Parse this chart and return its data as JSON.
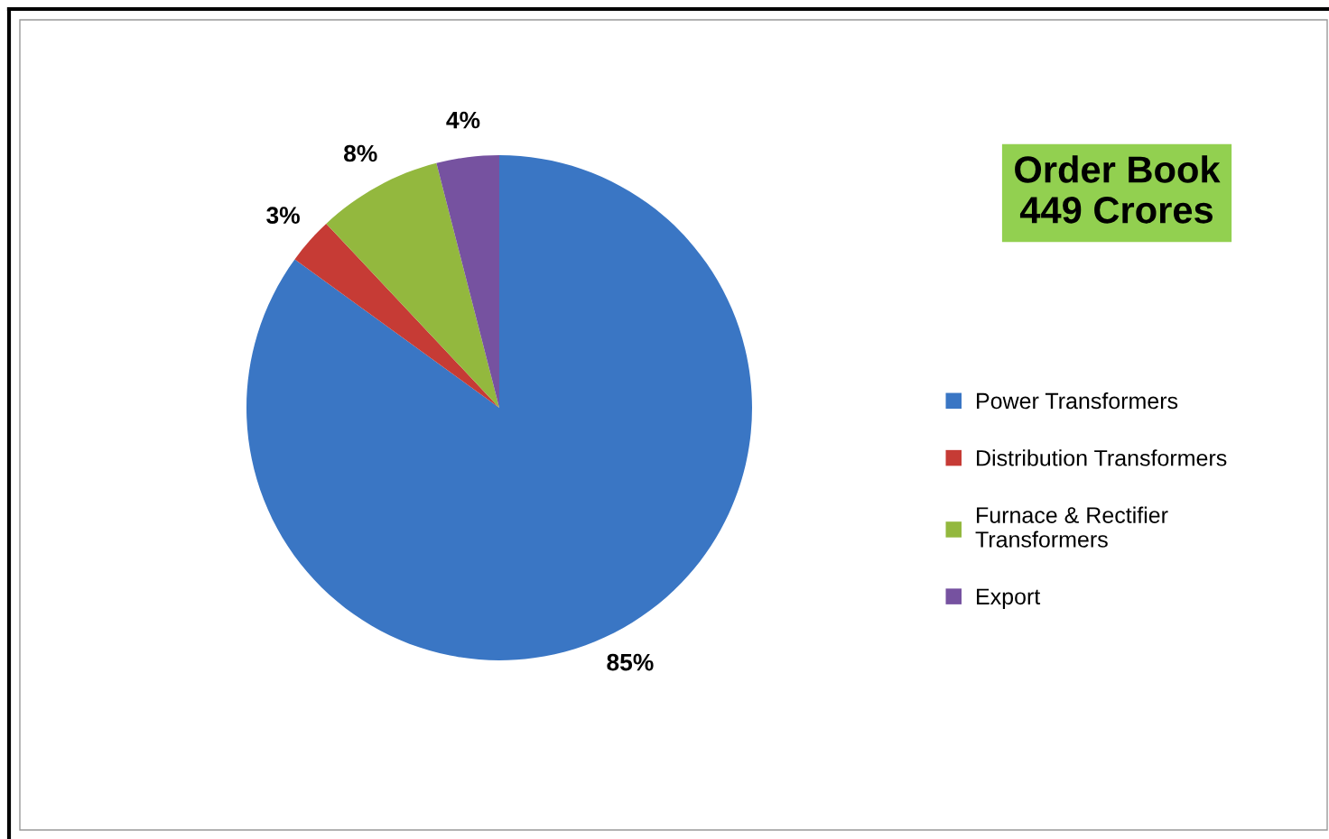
{
  "chart_data": {
    "type": "pie",
    "title": "Order Book\n449 Crores",
    "categories": [
      "Power Transformers",
      "Distribution Transformers",
      "Furnace & Rectifier\nTransformers",
      "Export"
    ],
    "values": [
      85,
      3,
      8,
      4
    ],
    "colors": [
      "#3a76c4",
      "#c63b35",
      "#93b83e",
      "#7652a0"
    ],
    "value_labels": [
      "85%",
      "3%",
      "8%",
      "4%"
    ],
    "legend": "right"
  }
}
